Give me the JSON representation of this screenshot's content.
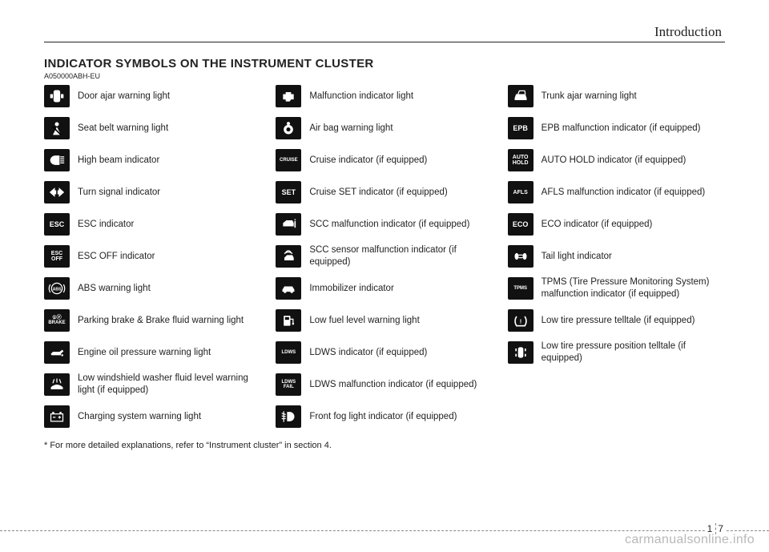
{
  "section_label": "Introduction",
  "title": "INDICATOR SYMBOLS ON THE INSTRUMENT CLUSTER",
  "doc_code": "A050000ABH-EU",
  "columns": [
    [
      {
        "icon_type": "svg",
        "icon": "door-ajar",
        "label": "Door ajar warning light"
      },
      {
        "icon_type": "svg",
        "icon": "seatbelt",
        "label": "Seat belt warning light"
      },
      {
        "icon_type": "svg",
        "icon": "high-beam",
        "label": "High beam indicator"
      },
      {
        "icon_type": "svg",
        "icon": "turn-signal",
        "label": "Turn signal indicator"
      },
      {
        "icon_type": "text",
        "icon": "ESC",
        "label": "ESC indicator"
      },
      {
        "icon_type": "text",
        "icon": "ESC\nOFF",
        "cls": "small",
        "label": "ESC OFF indicator"
      },
      {
        "icon_type": "svg",
        "icon": "abs",
        "label": "ABS warning light"
      },
      {
        "icon_type": "text",
        "icon": "①ⓟ\nBRAKE",
        "cls": "tiny",
        "label": "Parking brake & Brake fluid warning light"
      },
      {
        "icon_type": "svg",
        "icon": "oil",
        "label": "Engine oil pressure warning light"
      },
      {
        "icon_type": "svg",
        "icon": "washer",
        "label": "Low windshield washer fluid level warning light (if equipped)"
      },
      {
        "icon_type": "svg",
        "icon": "battery",
        "label": "Charging system warning light"
      }
    ],
    [
      {
        "icon_type": "svg",
        "icon": "engine",
        "label": "Malfunction indicator light"
      },
      {
        "icon_type": "svg",
        "icon": "airbag",
        "label": "Air bag warning light"
      },
      {
        "icon_type": "text",
        "icon": "CRUISE",
        "cls": "tiny",
        "label": "Cruise indicator (if equipped)"
      },
      {
        "icon_type": "text",
        "icon": "SET",
        "label": "Cruise SET indicator (if equipped)"
      },
      {
        "icon_type": "svg",
        "icon": "scc",
        "label": "SCC malfunction indicator (if equipped)"
      },
      {
        "icon_type": "svg",
        "icon": "scc-sensor",
        "label": "SCC sensor malfunction indicator (if equipped)"
      },
      {
        "icon_type": "svg",
        "icon": "immobilizer",
        "label": "Immobilizer indicator"
      },
      {
        "icon_type": "svg",
        "icon": "fuel",
        "label": "Low fuel level warning light"
      },
      {
        "icon_type": "text",
        "icon": "LDWS",
        "cls": "tiny",
        "label": "LDWS indicator (if equipped)"
      },
      {
        "icon_type": "text",
        "icon": "LDWS\nFAIL",
        "cls": "tiny",
        "label": "LDWS malfunction indicator (if equipped)"
      },
      {
        "icon_type": "svg",
        "icon": "fog",
        "label": "Front fog light indicator (if equipped)"
      }
    ],
    [
      {
        "icon_type": "svg",
        "icon": "trunk",
        "label": "Trunk ajar warning light"
      },
      {
        "icon_type": "text",
        "icon": "EPB",
        "label": "EPB malfunction indicator (if equipped)"
      },
      {
        "icon_type": "text",
        "icon": "AUTO\nHOLD",
        "cls": "small",
        "label": "AUTO HOLD indicator (if equipped)"
      },
      {
        "icon_type": "text",
        "icon": "AFLS",
        "cls": "small",
        "label": "AFLS malfunction indicator (if equipped)"
      },
      {
        "icon_type": "text",
        "icon": "ECO",
        "label": "ECO indicator (if equipped)"
      },
      {
        "icon_type": "svg",
        "icon": "tail-light",
        "label": "Tail light indicator"
      },
      {
        "icon_type": "text",
        "icon": "TPMS",
        "cls": "tiny",
        "label": "TPMS (Tire Pressure Monitoring System) malfunction indicator (if equipped)"
      },
      {
        "icon_type": "svg",
        "icon": "tire",
        "label": "Low tire pressure telltale (if equipped)"
      },
      {
        "icon_type": "svg",
        "icon": "tire-pos",
        "label": "Low tire pressure position telltale (if equipped)"
      }
    ]
  ],
  "footnote": "* For more detailed explanations, refer to “Instrument cluster” in section 4.",
  "page_number_left": "1",
  "page_number_right": "7",
  "watermark": "carmanualsonline.info",
  "svg_icons": {
    "door-ajar": "<svg viewBox='0 0 24 24'><rect x='7' y='3' width='10' height='18' rx='3' fill='white'/><rect x='2' y='9' width='4' height='6' fill='white'/><rect x='18' y='9' width='4' height='6' fill='white'/></svg>",
    "seatbelt": "<svg viewBox='0 0 24 24'><circle cx='12' cy='6' r='3' fill='white'/><path d='M6 22 L12 10 L18 22 Z' fill='white'/><line x1='6' y1='10' x2='18' y2='22' stroke='black' stroke-width='2'/></svg>",
    "high-beam": "<svg viewBox='0 0 24 24'><path d='M10 5 A8 7 0 0 0 10 19 L16 19 L16 5 Z' fill='white'/><line x1='17' y1='7' x2='23' y2='7' stroke='white' stroke-width='1.5'/><line x1='17' y1='10' x2='23' y2='10' stroke='white' stroke-width='1.5'/><line x1='17' y1='13' x2='23' y2='13' stroke='white' stroke-width='1.5'/><line x1='17' y1='16' x2='23' y2='16' stroke='white' stroke-width='1.5'/></svg>",
    "turn-signal": "<svg viewBox='0 0 24 24'><path d='M1 12 L9 5 L9 9 L11 9 L11 15 L9 15 L9 19 Z' fill='white'/><path d='M23 12 L15 5 L15 9 L13 9 L13 15 L15 15 L15 19 Z' fill='white'/></svg>",
    "abs": "<svg viewBox='0 0 24 24'><circle cx='12' cy='12' r='8' fill='none' stroke='white' stroke-width='1.5'/><text x='12' y='15' font-size='6' fill='white' text-anchor='middle' font-family='Arial' font-weight='bold'>ABS</text><path d='M2 6 A12 12 0 0 0 2 18' fill='none' stroke='white' stroke-width='1.5'/><path d='M22 6 A12 12 0 0 1 22 18' fill='none' stroke='white' stroke-width='1.5'/></svg>",
    "oil": "<svg viewBox='0 0 24 24'><path d='M3 14 L6 11 L16 11 L20 8 L22 10 L18 14 L18 16 L4 16 Z' fill='white'/><circle cx='20' cy='16' r='1.5' fill='white'/></svg>",
    "washer": "<svg viewBox='0 0 24 24'><path d='M3 16 Q12 8 21 16 L21 19 L3 19 Z' fill='white'/><line x1='8' y1='4' x2='6' y2='10' stroke='white' stroke-width='1.5'/><line x1='12' y1='3' x2='12' y2='9' stroke='white' stroke-width='1.5'/><line x1='16' y1='4' x2='18' y2='10' stroke='white' stroke-width='1.5'/></svg>",
    "battery": "<svg viewBox='0 0 24 24'><rect x='3' y='8' width='18' height='11' fill='none' stroke='white' stroke-width='1.5'/><rect x='5' y='5' width='3' height='3' fill='white'/><rect x='16' y='5' width='3' height='3' fill='white'/><line x1='6' y1='13' x2='10' y2='13' stroke='white' stroke-width='1.5'/><line x1='14' y1='13' x2='18' y2='13' stroke='white' stroke-width='1.5'/><line x1='16' y1='11' x2='16' y2='15' stroke='white' stroke-width='1.5'/></svg>",
    "engine": "<svg viewBox='0 0 24 24'><path d='M4 9 L8 9 L8 6 L16 6 L16 9 L20 9 L20 17 L16 17 L14 20 L8 20 L8 17 L4 17 Z' fill='white'/></svg>",
    "airbag": "<svg viewBox='0 0 24 24'><circle cx='12' cy='14' r='7' fill='white'/><circle cx='12' cy='5' r='2.5' fill='white'/><circle cx='12' cy='14' r='3' fill='black'/></svg>",
    "scc": "<svg viewBox='0 0 24 24'><path d='M4 10 L9 6 L18 6 L20 10 L20 15 L4 15 Z' fill='white'/><rect x='21' y='7' width='2' height='10' fill='white'/><circle cx='22' cy='5' r='1' fill='white'/></svg>",
    "scc-sensor": "<svg viewBox='0 0 24 24'><path d='M6 14 L10 10 L18 10 L20 14 L20 18 L6 18 Z' fill='white'/><path d='M6 8 Q12 3 18 8' fill='none' stroke='white' stroke-width='1.5'/><path d='M8 6 Q12 1 16 6' fill='none' stroke='white' stroke-width='1.5'/></svg>",
    "immobilizer": "<svg viewBox='0 0 24 24'><path d='M3 14 L6 9 L18 9 L21 14 L21 17 L3 17 Z' fill='white'/><circle cx='7' cy='17' r='2' fill='white'/><circle cx='17' cy='17' r='2' fill='white'/></svg>",
    "fuel": "<svg viewBox='0 0 24 24'><rect x='5' y='5' width='10' height='15' rx='1' fill='white'/><rect x='7' y='7' width='6' height='4' fill='black'/><path d='M15 10 L19 10 L19 17' fill='none' stroke='white' stroke-width='1.5'/><circle cx='19' cy='17' r='1.5' fill='white'/></svg>",
    "fog": "<svg viewBox='0 0 24 24'><path d='M14 5 A7 7 0 0 1 14 19 L10 19 L10 5 Z' fill='white'/><line x1='2' y1='7' x2='8' y2='9' stroke='white' stroke-width='1.5'/><line x1='2' y1='11' x2='8' y2='12' stroke='white' stroke-width='1.5'/><line x1='2' y1='15' x2='8' y2='15' stroke='white' stroke-width='1.5'/><line x1='5' y1='4' x2='5' y2='20' stroke='white' stroke-width='1.5'/></svg>",
    "trunk": "<svg viewBox='0 0 24 24'><path d='M3 15 L5 9 L19 9 L21 15 L21 18 L3 18 Z' fill='white'/><path d='M8 9 L10 4 L18 4 L19 9' fill='none' stroke='white' stroke-width='1.5'/></svg>",
    "tail-light": "<svg viewBox='0 0 24 24'><ellipse cx='6' cy='12' rx='3' ry='5' fill='white'/><ellipse cx='18' cy='12' rx='3' ry='5' fill='white'/><line x1='9' y1='10' x2='15' y2='10' stroke='white' stroke-width='1.5'/><line x1='9' y1='14' x2='15' y2='14' stroke='white' stroke-width='1.5'/></svg>",
    "tire": "<svg viewBox='0 0 24 24'><path d='M6 6 A8 10 0 0 0 6 20 L18 20 A8 10 0 0 0 18 6' fill='none' stroke='white' stroke-width='2'/><text x='12' y='16' font-size='9' fill='white' text-anchor='middle' font-weight='bold'>!</text><line x1='5' y1='20' x2='19' y2='20' stroke='white' stroke-width='2' stroke-dasharray='2 1'/></svg>",
    "tire-pos": "<svg viewBox='0 0 24 24'><rect x='8' y='4' width='8' height='16' rx='3' fill='white'/><rect x='4' y='6' width='2' height='4' fill='white'/><rect x='4' y='14' width='2' height='4' fill='white'/><rect x='18' y='6' width='2' height='4' fill='white'/><rect x='18' y='14' width='2' height='4' fill='white'/></svg>"
  }
}
